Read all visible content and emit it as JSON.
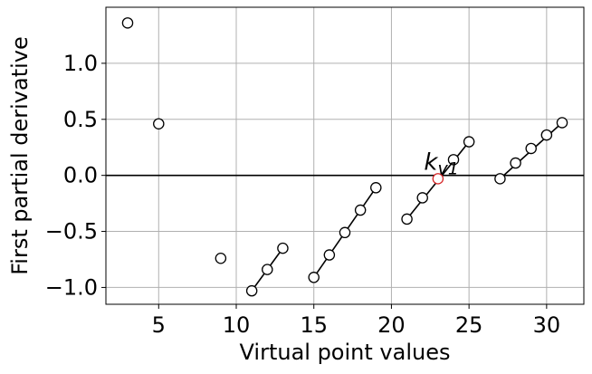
{
  "chart_data": {
    "type": "scatter",
    "title": "",
    "xlabel": "Virtual point values",
    "ylabel": "First partial derivative",
    "xlim": [
      1.6,
      32.4
    ],
    "ylim": [
      -1.15,
      1.5
    ],
    "xticks": [
      5,
      10,
      15,
      20,
      25,
      30
    ],
    "yticks": [
      1.0,
      0.5,
      0.0,
      -0.5,
      -1.0
    ],
    "xtick_labels": [
      "5",
      "10",
      "15",
      "20",
      "25",
      "30"
    ],
    "ytick_labels": [
      "1.0",
      "0.5",
      "0.0",
      "−0.5",
      "−1.0"
    ],
    "grid": true,
    "zero_line": 0.0,
    "isolated_points": [
      {
        "x": 3,
        "y": 1.36
      },
      {
        "x": 5,
        "y": 0.46
      },
      {
        "x": 9,
        "y": -0.74
      }
    ],
    "segments": [
      {
        "points": [
          {
            "x": 11,
            "y": -1.03
          },
          {
            "x": 12,
            "y": -0.84
          },
          {
            "x": 13,
            "y": -0.65
          }
        ]
      },
      {
        "points": [
          {
            "x": 15,
            "y": -0.91
          },
          {
            "x": 16,
            "y": -0.71
          },
          {
            "x": 17,
            "y": -0.51
          },
          {
            "x": 18,
            "y": -0.31
          },
          {
            "x": 19,
            "y": -0.11
          }
        ]
      },
      {
        "points": [
          {
            "x": 21,
            "y": -0.39
          },
          {
            "x": 22,
            "y": -0.2
          },
          {
            "x": 23,
            "y": -0.03
          },
          {
            "x": 24,
            "y": 0.14
          },
          {
            "x": 25,
            "y": 0.3
          }
        ]
      },
      {
        "points": [
          {
            "x": 27,
            "y": -0.03
          },
          {
            "x": 28,
            "y": 0.11
          },
          {
            "x": 29,
            "y": 0.24
          },
          {
            "x": 30,
            "y": 0.36
          },
          {
            "x": 31,
            "y": 0.47
          }
        ]
      }
    ],
    "highlight_point": {
      "x": 23,
      "y": -0.03,
      "color": "#d62728"
    },
    "annotation": {
      "base": "k",
      "sub": "v1",
      "x": 22.1,
      "y": 0.05
    },
    "colors": {
      "marker": "#000000",
      "grid": "#b0b0b0",
      "line": "#000000"
    }
  }
}
